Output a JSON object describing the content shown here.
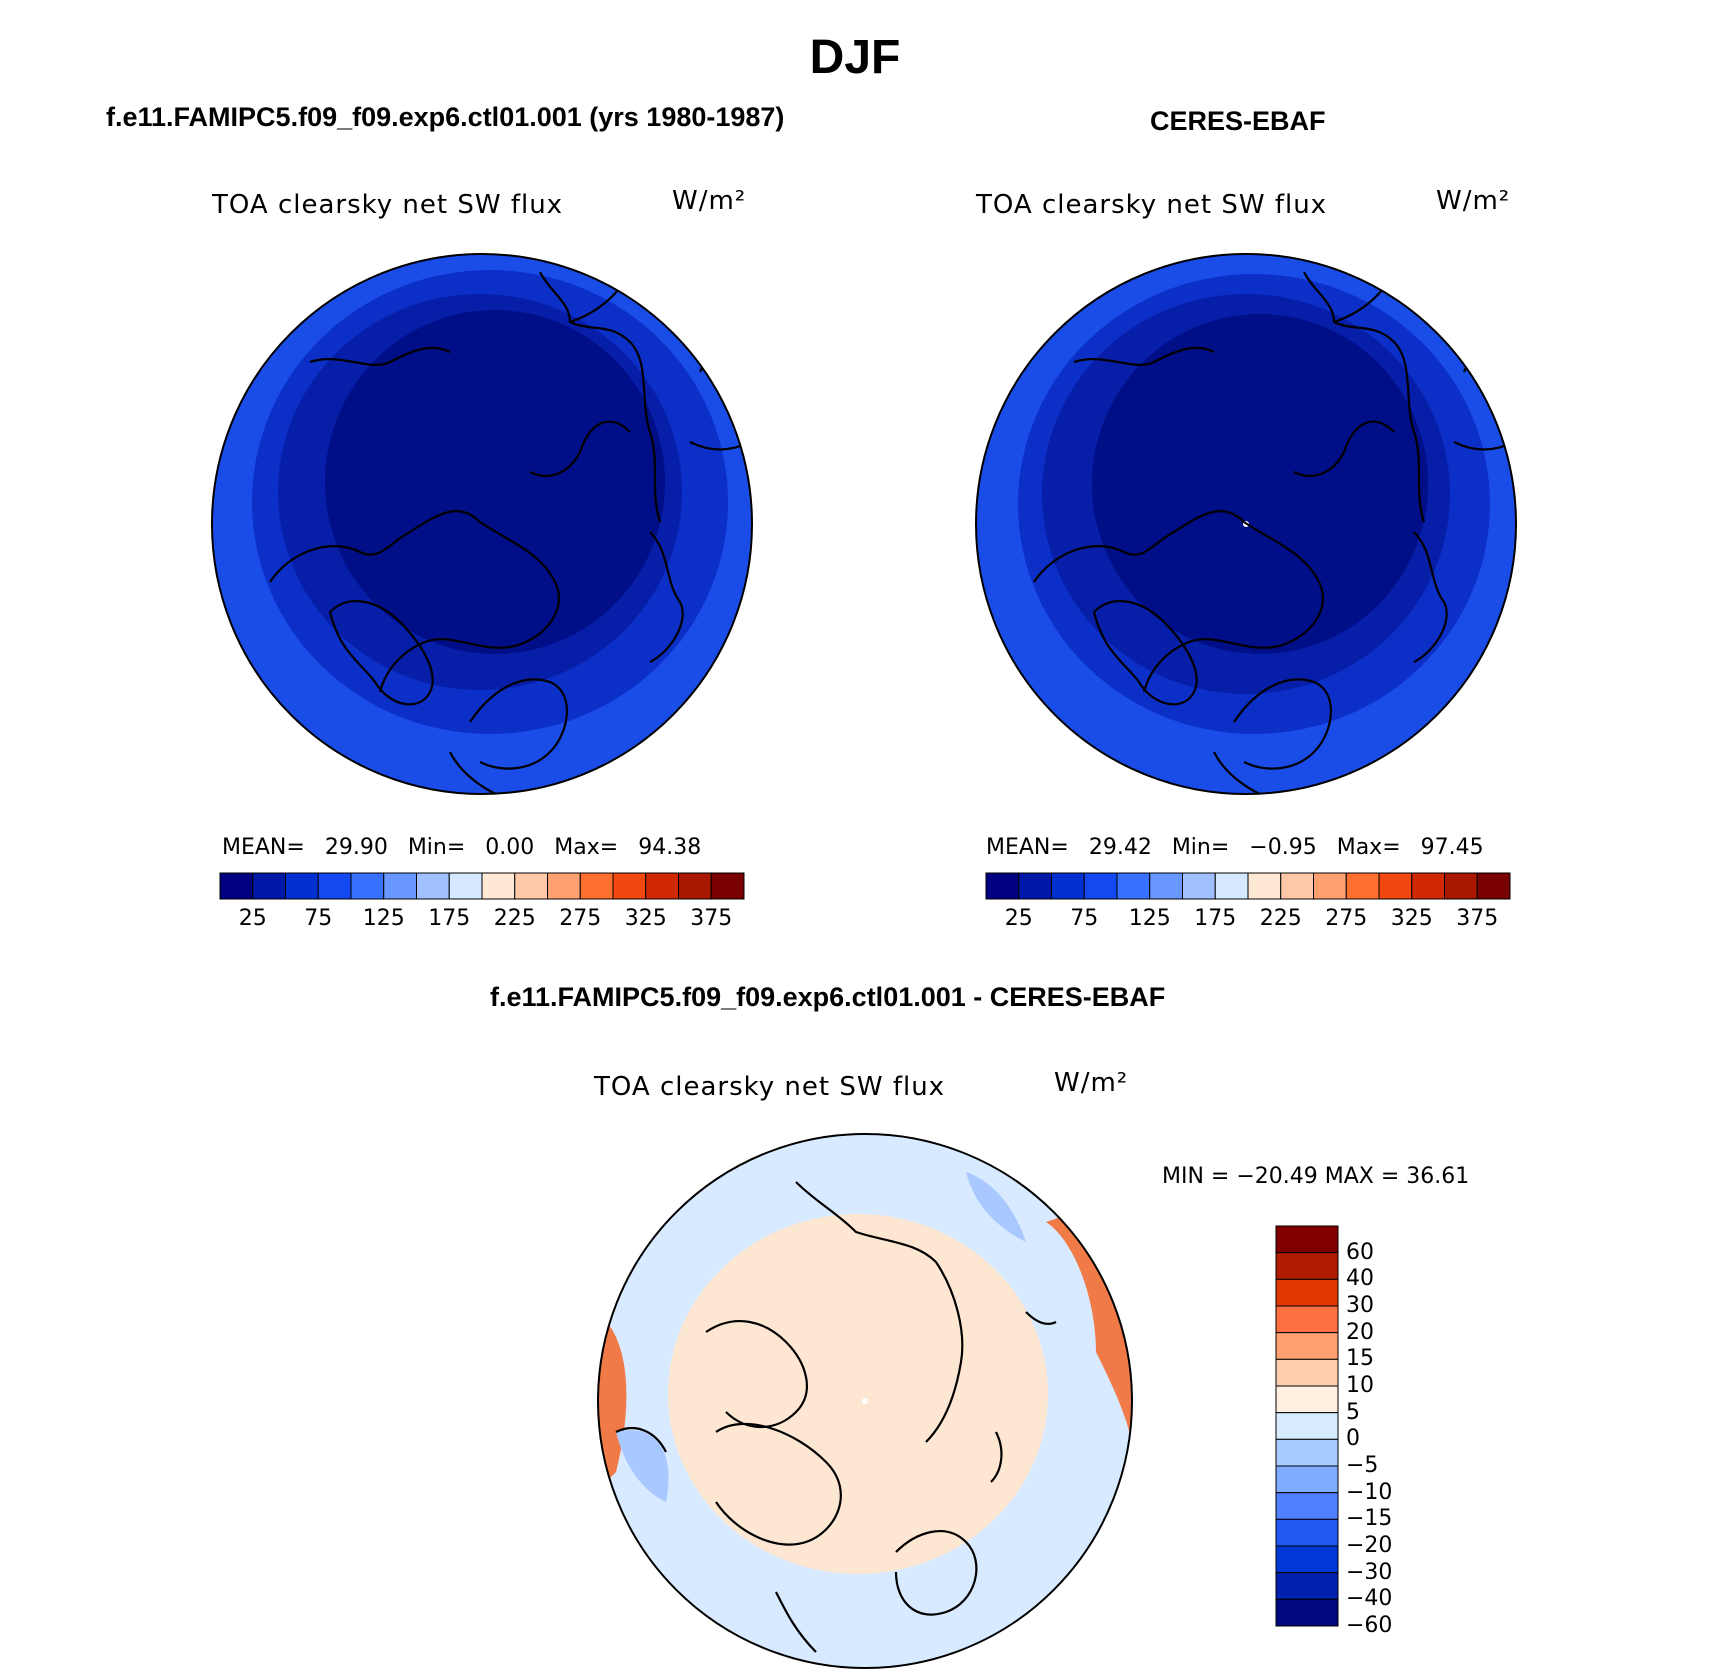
{
  "figure": {
    "season": "DJF"
  },
  "panels": [
    {
      "title": "f.e11.FAMIPC5.f09_f09.exp6.ctl01.001 (yrs 1980-1987)",
      "variable": "TOA clearsky net SW flux",
      "units": "W/m²",
      "stats": {
        "mean_label": "MEAN=",
        "mean": "29.90",
        "min_label": "Min=",
        "min": "0.00",
        "max_label": "Max=",
        "max": "94.38"
      }
    },
    {
      "title": "CERES-EBAF",
      "variable": "TOA clearsky net SW flux",
      "units": "W/m²",
      "stats": {
        "mean_label": "MEAN=",
        "mean": "29.42",
        "min_label": "Min=",
        "min": "−0.95",
        "max_label": "Max=",
        "max": "97.45"
      }
    },
    {
      "title": "f.e11.FAMIPC5.f09_f09.exp6.ctl01.001 - CERES-EBAF",
      "variable": "TOA clearsky net SW flux",
      "units": "W/m²",
      "stats": {
        "text": "MIN = −20.49 MAX =  36.61"
      }
    }
  ],
  "colorbar_abs": {
    "colors": [
      "#000080",
      "#0018a8",
      "#0030d0",
      "#1448f0",
      "#3870ff",
      "#6898ff",
      "#a0c0ff",
      "#d4e8ff",
      "#ffe8d4",
      "#ffc8a8",
      "#ffa070",
      "#ff7030",
      "#f04810",
      "#d02800",
      "#a81800",
      "#780000"
    ],
    "tick_labels": [
      "25",
      "75",
      "125",
      "175",
      "225",
      "275",
      "325",
      "375"
    ]
  },
  "colorbar_diff": {
    "colors": [
      "#800000",
      "#b01c00",
      "#e03800",
      "#ff7040",
      "#ffa070",
      "#ffd0b0",
      "#fff0e0",
      "#d8ecff",
      "#a8ccff",
      "#80acff",
      "#5080ff",
      "#2058f0",
      "#0038d8",
      "#0020b0",
      "#000880"
    ],
    "tick_labels": [
      "60",
      "40",
      "30",
      "20",
      "15",
      "10",
      "5",
      "0",
      "−5",
      "−10",
      "−15",
      "−20",
      "−30",
      "−40",
      "−60"
    ]
  },
  "map_colors": {
    "abs_outer": "#1a4ce8",
    "abs_mid": "#0c2fc8",
    "abs_inner": "#061ea8",
    "abs_core": "#000e88",
    "diff_base": "#d8eaff",
    "diff_warm": "#fde6d2",
    "diff_hot": "#f07a48",
    "diff_cool": "#a8c8ff"
  }
}
